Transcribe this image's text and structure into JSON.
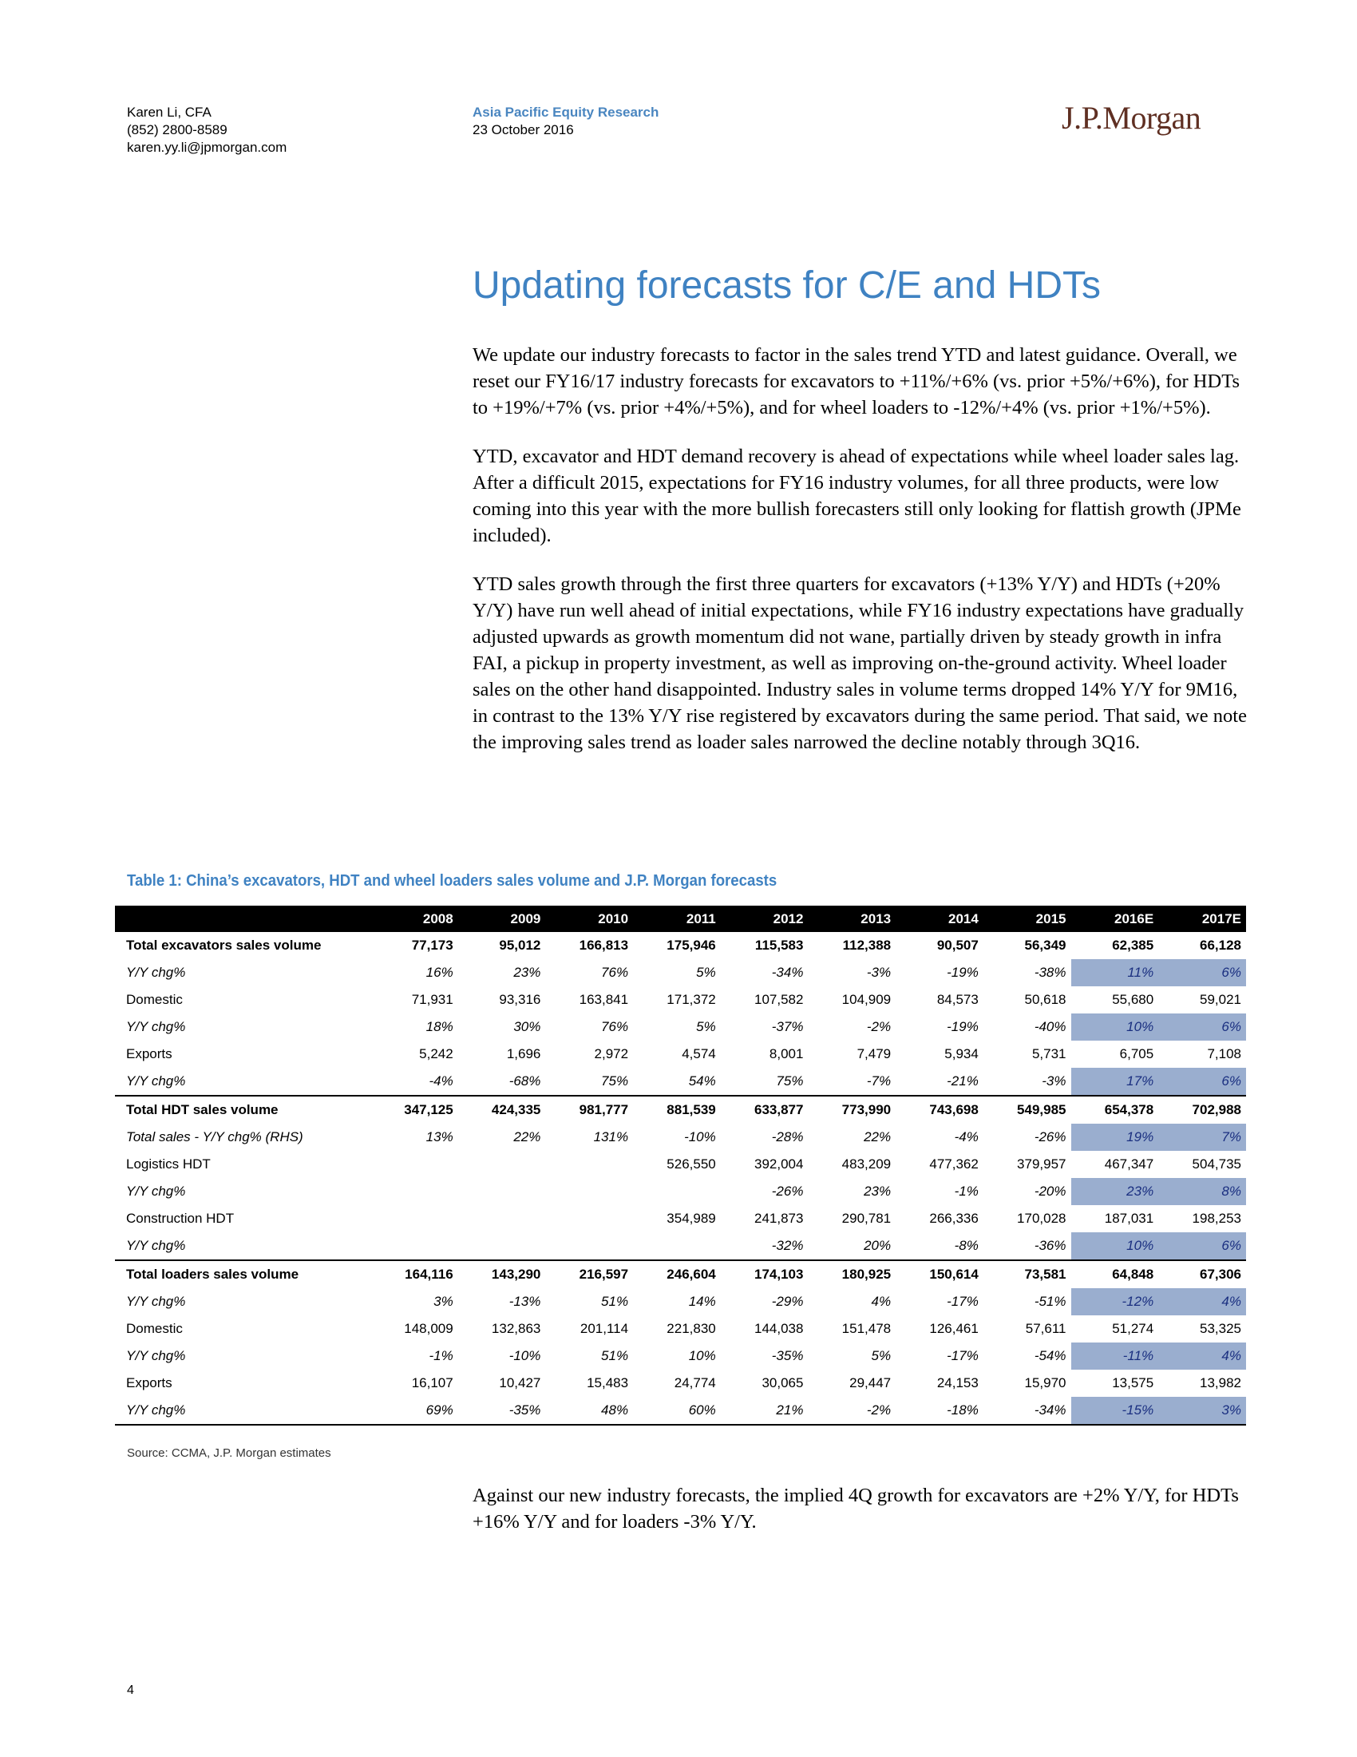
{
  "header": {
    "author_name": "Karen Li, CFA",
    "author_phone": "(852) 2800-8589",
    "author_email": "karen.yy.li@jpmorgan.com",
    "department": "Asia Pacific Equity Research",
    "date": "23 October 2016",
    "logo": "J.P.Morgan"
  },
  "title": "Updating forecasts for C/E and HDTs",
  "paragraphs": [
    "We update our industry forecasts to factor in the sales trend YTD and latest guidance. Overall, we reset our FY16/17 industry forecasts for excavators to +11%/+6% (vs. prior +5%/+6%), for HDTs to +19%/+7% (vs. prior +4%/+5%), and for wheel loaders to -12%/+4% (vs. prior +1%/+5%).",
    "YTD, excavator and HDT demand recovery is ahead of expectations while wheel loader sales lag. After a difficult 2015, expectations for FY16 industry volumes, for all three products, were low coming into this year with the more bullish forecasters still only looking for flattish growth (JPMe included).",
    "YTD sales growth through the first three quarters for excavators (+13% Y/Y) and HDTs (+20% Y/Y) have run well ahead of initial expectations, while FY16 industry expectations have gradually adjusted upwards as growth momentum did not wane, partially driven by steady growth in infra FAI, a pickup in property investment, as well as improving on-the-ground activity. Wheel loader sales on the other hand disappointed. Industry sales in volume terms dropped 14% Y/Y for 9M16, in contrast to the 13% Y/Y rise registered by excavators during the same period. That said, we note the improving sales trend as loader sales narrowed the decline notably through 3Q16."
  ],
  "table": {
    "title": "Table 1: China’s excavators, HDT and wheel loaders sales volume and J.P. Morgan forecasts",
    "columns": [
      "2008",
      "2009",
      "2010",
      "2011",
      "2012",
      "2013",
      "2014",
      "2015",
      "2016E",
      "2017E"
    ],
    "rows": [
      {
        "label": "Total excavators sales volume",
        "values": [
          "77,173",
          "95,012",
          "166,813",
          "175,946",
          "115,583",
          "112,388",
          "90,507",
          "56,349",
          "62,385",
          "66,128"
        ]
      },
      {
        "label": "Y/Y chg%",
        "values": [
          "16%",
          "23%",
          "76%",
          "5%",
          "-34%",
          "-3%",
          "-19%",
          "-38%",
          "11%",
          "6%"
        ]
      },
      {
        "label": "Domestic",
        "values": [
          "71,931",
          "93,316",
          "163,841",
          "171,372",
          "107,582",
          "104,909",
          "84,573",
          "50,618",
          "55,680",
          "59,021"
        ]
      },
      {
        "label": "Y/Y chg%",
        "values": [
          "18%",
          "30%",
          "76%",
          "5%",
          "-37%",
          "-2%",
          "-19%",
          "-40%",
          "10%",
          "6%"
        ]
      },
      {
        "label": "Exports",
        "values": [
          "5,242",
          "1,696",
          "2,972",
          "4,574",
          "8,001",
          "7,479",
          "5,934",
          "5,731",
          "6,705",
          "7,108"
        ]
      },
      {
        "label": "Y/Y chg%",
        "values": [
          "-4%",
          "-68%",
          "75%",
          "54%",
          "75%",
          "-7%",
          "-21%",
          "-3%",
          "17%",
          "6%"
        ]
      },
      {
        "label": "Total HDT sales volume",
        "values": [
          "347,125",
          "424,335",
          "981,777",
          "881,539",
          "633,877",
          "773,990",
          "743,698",
          "549,985",
          "654,378",
          "702,988"
        ]
      },
      {
        "label": "Total sales - Y/Y chg% (RHS)",
        "values": [
          "13%",
          "22%",
          "131%",
          "-10%",
          "-28%",
          "22%",
          "-4%",
          "-26%",
          "19%",
          "7%"
        ]
      },
      {
        "label": "Logistics HDT",
        "values": [
          "",
          "",
          "",
          "526,550",
          "392,004",
          "483,209",
          "477,362",
          "379,957",
          "467,347",
          "504,735"
        ]
      },
      {
        "label": "Y/Y chg%",
        "values": [
          "",
          "",
          "",
          "",
          "-26%",
          "23%",
          "-1%",
          "-20%",
          "23%",
          "8%"
        ]
      },
      {
        "label": "Construction HDT",
        "values": [
          "",
          "",
          "",
          "354,989",
          "241,873",
          "290,781",
          "266,336",
          "170,028",
          "187,031",
          "198,253"
        ]
      },
      {
        "label": "Y/Y chg%",
        "values": [
          "",
          "",
          "",
          "",
          "-32%",
          "20%",
          "-8%",
          "-36%",
          "10%",
          "6%"
        ]
      },
      {
        "label": "Total loaders sales volume",
        "values": [
          "164,116",
          "143,290",
          "216,597",
          "246,604",
          "174,103",
          "180,925",
          "150,614",
          "73,581",
          "64,848",
          "67,306"
        ]
      },
      {
        "label": "Y/Y chg%",
        "values": [
          "3%",
          "-13%",
          "51%",
          "14%",
          "-29%",
          "4%",
          "-17%",
          "-51%",
          "-12%",
          "4%"
        ]
      },
      {
        "label": "Domestic",
        "values": [
          "148,009",
          "132,863",
          "201,114",
          "221,830",
          "144,038",
          "151,478",
          "126,461",
          "57,611",
          "51,274",
          "53,325"
        ]
      },
      {
        "label": "Y/Y chg%",
        "values": [
          "-1%",
          "-10%",
          "51%",
          "10%",
          "-35%",
          "5%",
          "-17%",
          "-54%",
          "-11%",
          "4%"
        ]
      },
      {
        "label": "Exports",
        "values": [
          "16,107",
          "10,427",
          "15,483",
          "24,774",
          "30,065",
          "29,447",
          "24,153",
          "15,970",
          "13,575",
          "13,982"
        ]
      },
      {
        "label": "Y/Y chg%",
        "values": [
          "69%",
          "-35%",
          "48%",
          "60%",
          "21%",
          "-2%",
          "-18%",
          "-34%",
          "-15%",
          "3%"
        ]
      }
    ],
    "source": "Source: CCMA, J.P. Morgan estimates"
  },
  "closing": "Against our new industry forecasts, the implied 4Q growth for excavators are +2% Y/Y, for HDTs +16% Y/Y and for loaders -3% Y/Y.",
  "page_number": "4",
  "colors": {
    "accent_blue": "#3f82c2",
    "logo_brown": "#5f2f22",
    "forecast_highlight": "#9aaecf",
    "forecast_text": "#1a2f80"
  }
}
